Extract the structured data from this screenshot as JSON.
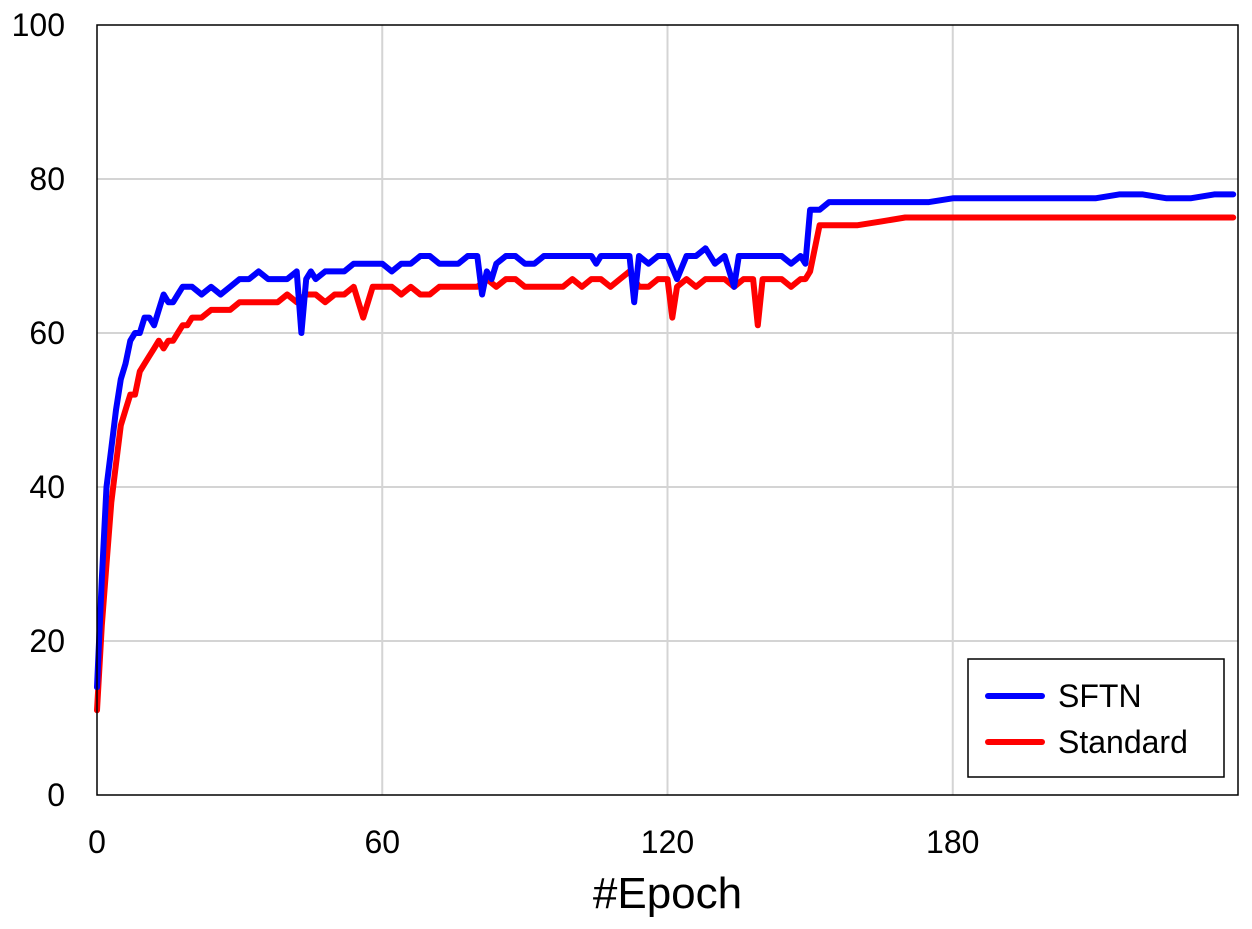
{
  "chart_data": {
    "type": "line",
    "title": "",
    "xlabel": "#Epoch",
    "ylabel": "",
    "xlim": [
      0,
      240
    ],
    "ylim": [
      0,
      100
    ],
    "x_ticks": [
      0,
      60,
      120,
      180
    ],
    "x_tick_labels": [
      "0",
      "60",
      "120",
      "180"
    ],
    "y_ticks": [
      0,
      20,
      40,
      60,
      80,
      100
    ],
    "y_tick_labels": [
      "0",
      "20",
      "40",
      "60",
      "80",
      "100"
    ],
    "grid": true,
    "legend_position": "bottom-right",
    "series": [
      {
        "name": "SFTN",
        "color": "#0000ff",
        "x": [
          0,
          1,
          2,
          3,
          4,
          5,
          6,
          7,
          8,
          9,
          10,
          11,
          12,
          13,
          14,
          15,
          16,
          17,
          18,
          19,
          20,
          22,
          24,
          26,
          28,
          30,
          32,
          34,
          36,
          38,
          40,
          42,
          43,
          44,
          45,
          46,
          48,
          50,
          52,
          54,
          56,
          58,
          60,
          62,
          64,
          66,
          68,
          70,
          72,
          74,
          76,
          78,
          80,
          81,
          82,
          83,
          84,
          86,
          88,
          90,
          92,
          94,
          96,
          98,
          100,
          102,
          104,
          105,
          106,
          108,
          110,
          112,
          113,
          114,
          116,
          118,
          120,
          122,
          124,
          126,
          128,
          130,
          132,
          134,
          135,
          136,
          138,
          140,
          142,
          144,
          146,
          148,
          149,
          150,
          152,
          154,
          156,
          160,
          165,
          170,
          175,
          180,
          185,
          190,
          195,
          200,
          205,
          210,
          215,
          220,
          225,
          230,
          235,
          239
        ],
        "y": [
          14,
          28,
          40,
          45,
          50,
          54,
          56,
          59,
          60,
          60,
          62,
          62,
          61,
          63,
          65,
          64,
          64,
          65,
          66,
          66,
          66,
          65,
          66,
          65,
          66,
          67,
          67,
          68,
          67,
          67,
          67,
          68,
          60,
          67,
          68,
          67,
          68,
          68,
          68,
          69,
          69,
          69,
          69,
          68,
          69,
          69,
          70,
          70,
          69,
          69,
          69,
          70,
          70,
          65,
          68,
          67,
          69,
          70,
          70,
          69,
          69,
          70,
          70,
          70,
          70,
          70,
          70,
          69,
          70,
          70,
          70,
          70,
          64,
          70,
          69,
          70,
          70,
          67,
          70,
          70,
          71,
          69,
          70,
          66,
          70,
          70,
          70,
          70,
          70,
          70,
          69,
          70,
          69,
          76,
          76,
          77,
          77,
          77,
          77,
          77,
          77,
          77.5,
          77.5,
          77.5,
          77.5,
          77.5,
          77.5,
          77.5,
          78,
          78,
          77.5,
          77.5,
          78,
          78
        ]
      },
      {
        "name": "Standard",
        "color": "#ff0000",
        "x": [
          0,
          1,
          2,
          3,
          4,
          5,
          6,
          7,
          8,
          9,
          10,
          11,
          12,
          13,
          14,
          15,
          16,
          17,
          18,
          19,
          20,
          22,
          24,
          26,
          28,
          30,
          32,
          34,
          36,
          38,
          40,
          42,
          44,
          46,
          48,
          50,
          52,
          54,
          56,
          58,
          60,
          62,
          64,
          66,
          68,
          70,
          72,
          74,
          76,
          78,
          80,
          82,
          84,
          86,
          88,
          90,
          92,
          94,
          96,
          98,
          100,
          102,
          104,
          106,
          108,
          110,
          112,
          114,
          116,
          118,
          120,
          121,
          122,
          124,
          126,
          128,
          130,
          132,
          134,
          136,
          138,
          139,
          140,
          142,
          144,
          146,
          148,
          149,
          150,
          152,
          154,
          156,
          160,
          165,
          170,
          175,
          180,
          185,
          190,
          195,
          200,
          205,
          210,
          215,
          220,
          225,
          230,
          235,
          239
        ],
        "y": [
          11,
          22,
          30,
          38,
          43,
          48,
          50,
          52,
          52,
          55,
          56,
          57,
          58,
          59,
          58,
          59,
          59,
          60,
          61,
          61,
          62,
          62,
          63,
          63,
          63,
          64,
          64,
          64,
          64,
          64,
          65,
          64,
          65,
          65,
          64,
          65,
          65,
          66,
          62,
          66,
          66,
          66,
          65,
          66,
          65,
          65,
          66,
          66,
          66,
          66,
          66,
          67,
          66,
          67,
          67,
          66,
          66,
          66,
          66,
          66,
          67,
          66,
          67,
          67,
          66,
          67,
          68,
          66,
          66,
          67,
          67,
          62,
          66,
          67,
          66,
          67,
          67,
          67,
          66,
          67,
          67,
          61,
          67,
          67,
          67,
          66,
          67,
          67,
          68,
          74,
          74,
          74,
          74,
          74.5,
          75,
          75,
          75,
          75,
          75,
          75,
          75,
          75,
          75,
          75,
          75,
          75,
          75,
          75,
          75
        ]
      }
    ]
  }
}
